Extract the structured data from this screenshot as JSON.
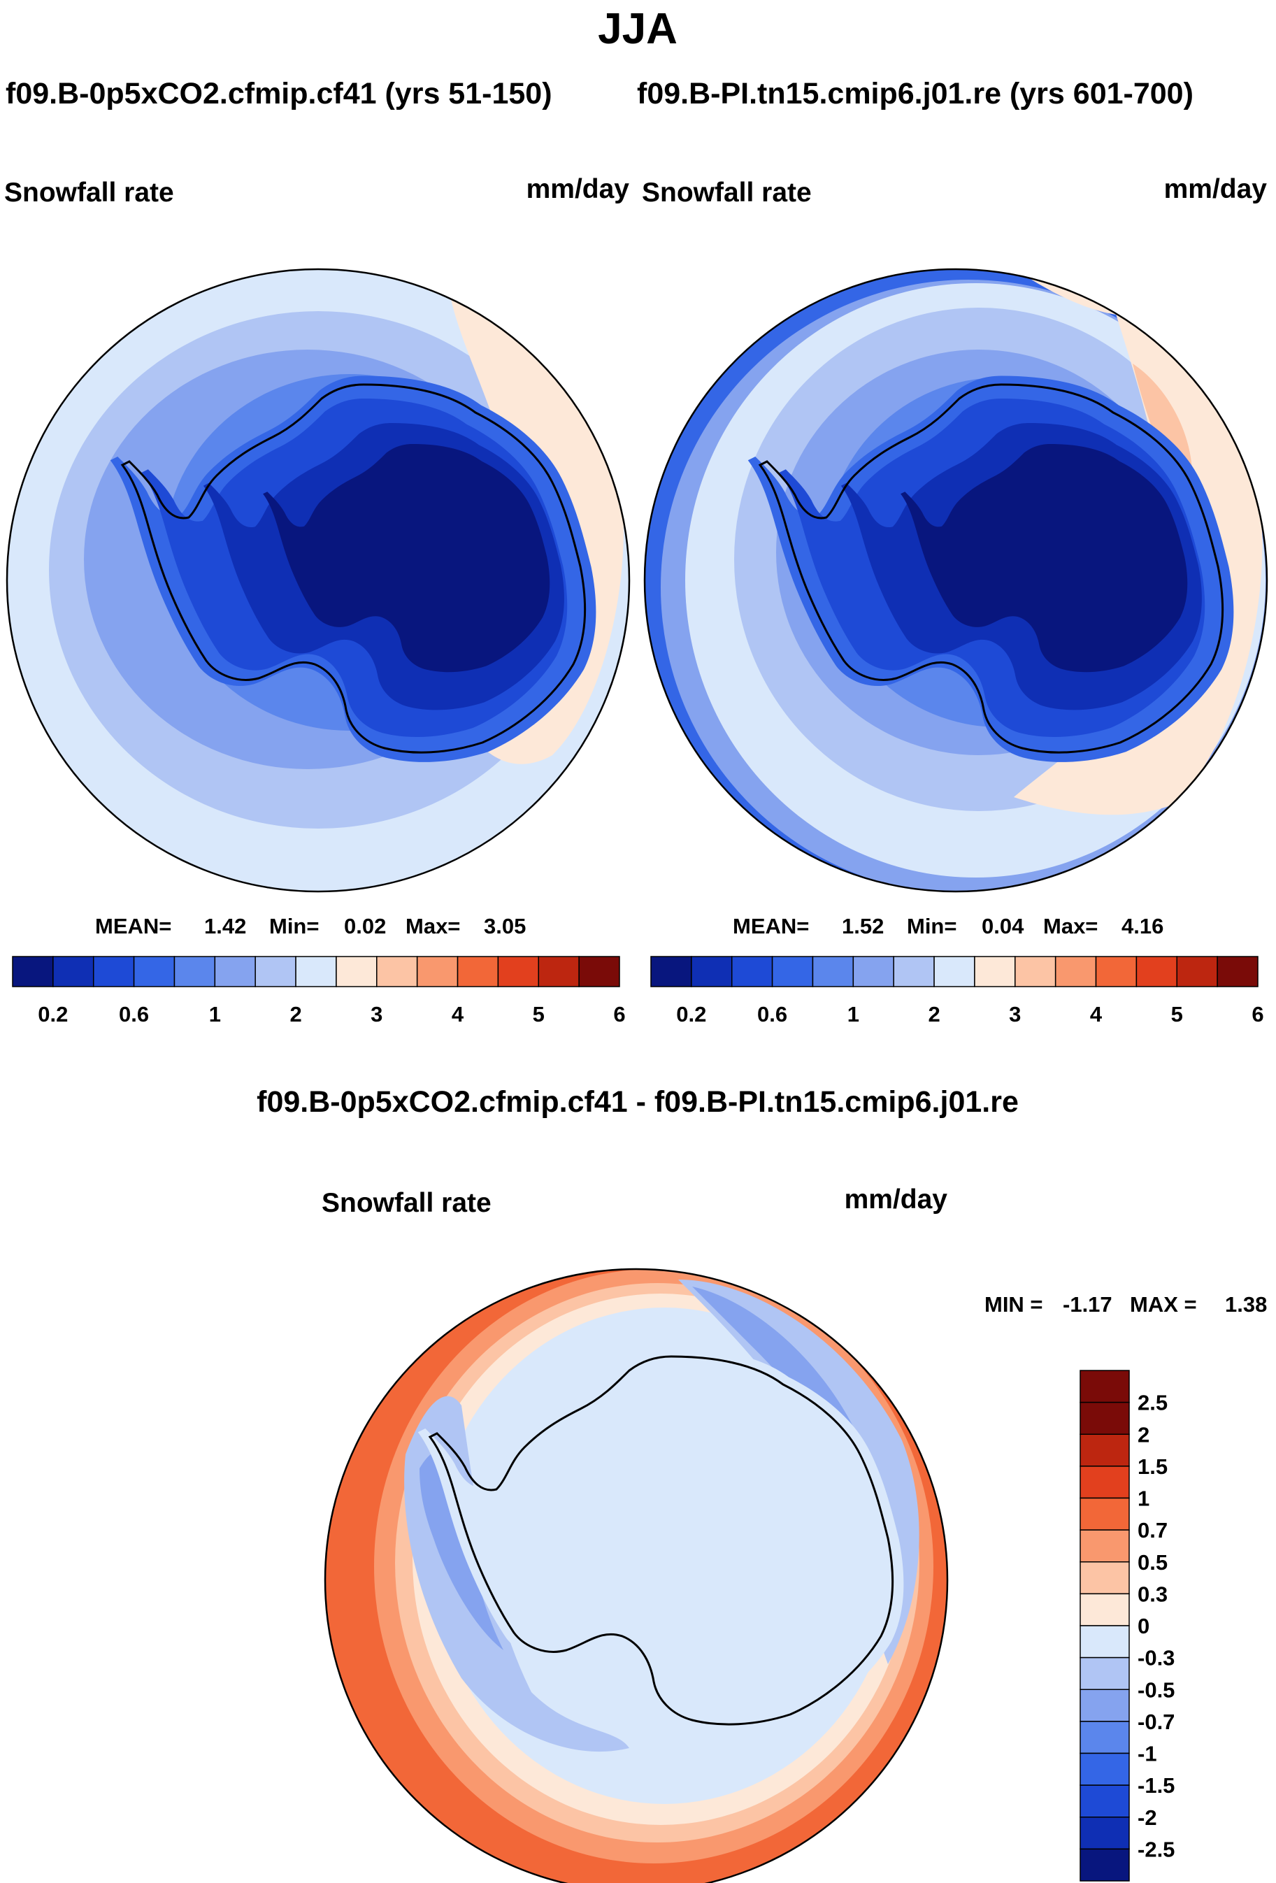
{
  "page_title": "JJA",
  "colors": {
    "abs_levels": [
      "#08167e",
      "#0f2fb4",
      "#1e4ad6",
      "#3466e6",
      "#5b86ec",
      "#85a3ef",
      "#b0c5f4",
      "#d9e8fb",
      "#fde8d8",
      "#fcc4a5",
      "#f9986e",
      "#f26738",
      "#e2401e",
      "#bd2610",
      "#7a0b08"
    ],
    "diff_levels": [
      "#08167e",
      "#0f2fb4",
      "#1e4ad6",
      "#3466e6",
      "#5b86ec",
      "#85a3ef",
      "#b0c5f4",
      "#d9e8fb",
      "#fde8d8",
      "#fcc4a5",
      "#f9986e",
      "#f26738",
      "#e2401e",
      "#bd2610",
      "#7a0b08"
    ],
    "coast": "#000000"
  },
  "panels": {
    "left": {
      "case_title": "f09.B-0p5xCO2.cfmip.cf41 (yrs 51-150)",
      "variable": "Snowfall rate",
      "units": "mm/day",
      "stats_mean_label": "MEAN=",
      "stats_mean": "1.42",
      "stats_min_label": "Min=",
      "stats_min": "0.02",
      "stats_max_label": "Max=",
      "stats_max": "3.05",
      "colorbar_ticks": [
        "0.2",
        "0.6",
        "1",
        "2",
        "3",
        "4",
        "5",
        "6"
      ]
    },
    "right": {
      "case_title": "f09.B-PI.tn15.cmip6.j01.re (yrs 601-700)",
      "variable": "Snowfall rate",
      "units": "mm/day",
      "stats_mean_label": "MEAN=",
      "stats_mean": "1.52",
      "stats_min_label": "Min=",
      "stats_min": "0.04",
      "stats_max_label": "Max=",
      "stats_max": "4.16",
      "colorbar_ticks": [
        "0.2",
        "0.6",
        "1",
        "2",
        "3",
        "4",
        "5",
        "6"
      ]
    },
    "diff": {
      "case_title": "f09.B-0p5xCO2.cfmip.cf41 - f09.B-PI.tn15.cmip6.j01.re",
      "variable": "Snowfall rate",
      "units": "mm/day",
      "stats_min_label": "MIN =",
      "stats_min": "-1.17",
      "stats_max_label": "MAX =",
      "stats_max": "1.38",
      "colorbar_ticks": [
        "2.5",
        "2",
        "1.5",
        "1",
        "0.7",
        "0.5",
        "0.3",
        "0",
        "-0.3",
        "-0.5",
        "-0.7",
        "-1",
        "-1.5",
        "-2",
        "-2.5"
      ]
    }
  }
}
